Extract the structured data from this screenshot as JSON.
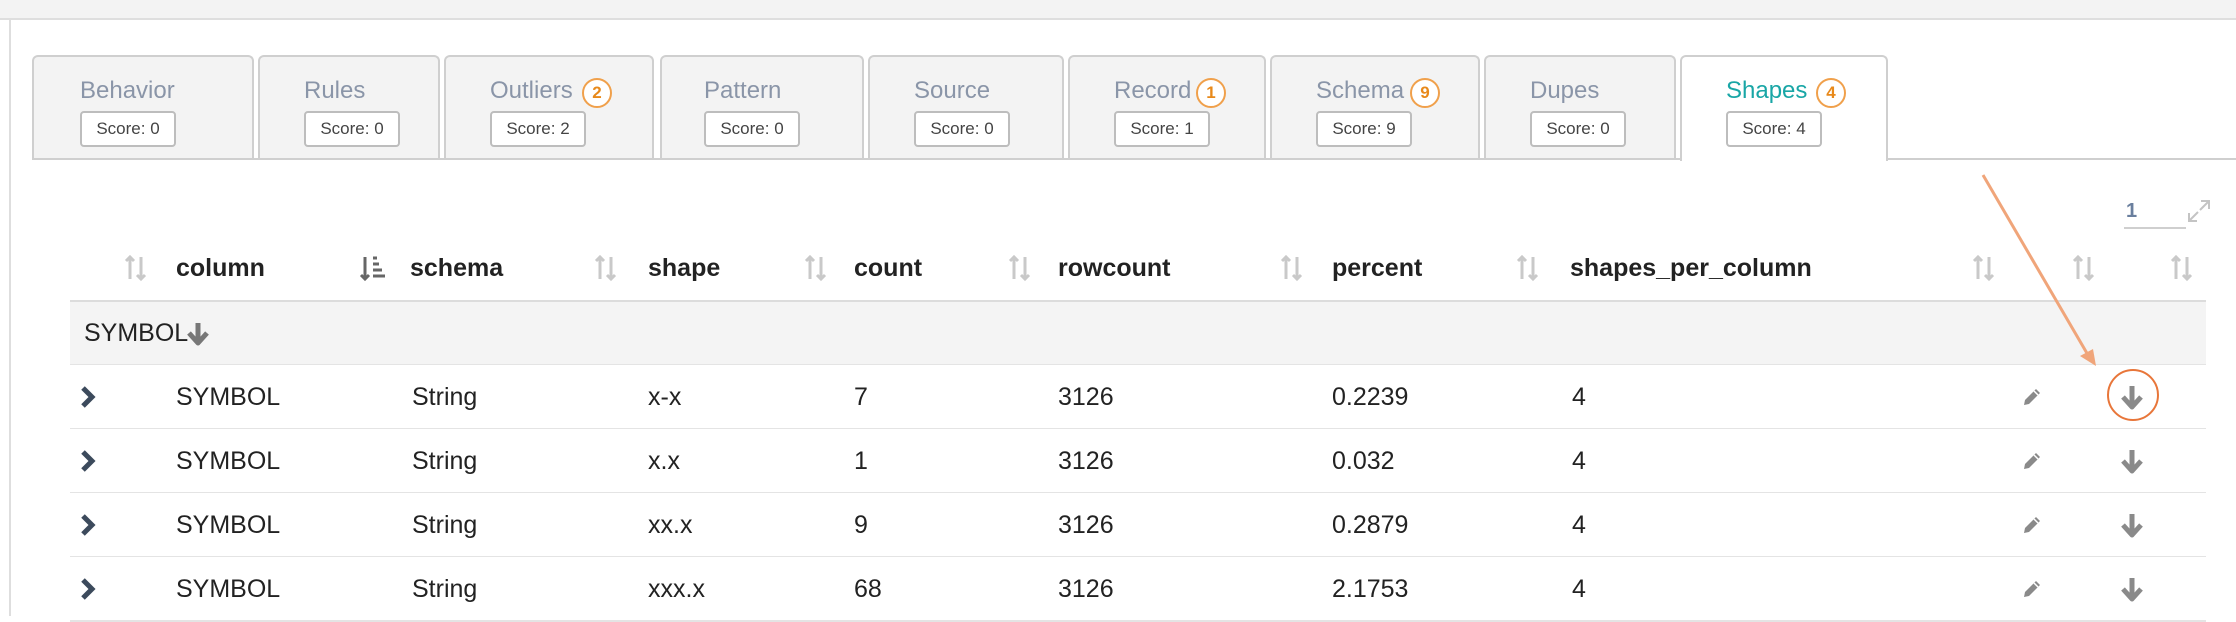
{
  "tabs": [
    {
      "title": "Behavior",
      "badge": null,
      "score": "Score: 0",
      "active": false
    },
    {
      "title": "Rules",
      "badge": null,
      "score": "Score: 0",
      "active": false
    },
    {
      "title": "Outliers",
      "badge": "2",
      "score": "Score: 2",
      "active": false
    },
    {
      "title": "Pattern",
      "badge": null,
      "score": "Score: 0",
      "active": false
    },
    {
      "title": "Source",
      "badge": null,
      "score": "Score: 0",
      "active": false
    },
    {
      "title": "Record",
      "badge": "1",
      "score": "Score: 1",
      "active": false
    },
    {
      "title": "Schema",
      "badge": "9",
      "score": "Score: 9",
      "active": false
    },
    {
      "title": "Dupes",
      "badge": null,
      "score": "Score: 0",
      "active": false
    },
    {
      "title": "Shapes",
      "badge": "4",
      "score": "Score: 4",
      "active": true
    }
  ],
  "pager": {
    "page": "1"
  },
  "table": {
    "headers": [
      "column",
      "schema",
      "shape",
      "count",
      "rowcount",
      "percent",
      "shapes_per_column"
    ],
    "group": {
      "label": "SYMBOL"
    },
    "rows": [
      {
        "column": "SYMBOL",
        "schema": "String",
        "shape": "x-x",
        "count": "7",
        "rowcount": "3126",
        "percent": "0.2239",
        "shapes_per_column": "4"
      },
      {
        "column": "SYMBOL",
        "schema": "String",
        "shape": "x.x",
        "count": "1",
        "rowcount": "3126",
        "percent": "0.032",
        "shapes_per_column": "4"
      },
      {
        "column": "SYMBOL",
        "schema": "String",
        "shape": "xx.x",
        "count": "9",
        "rowcount": "3126",
        "percent": "0.2879",
        "shapes_per_column": "4"
      },
      {
        "column": "SYMBOL",
        "schema": "String",
        "shape": "xxx.x",
        "count": "68",
        "rowcount": "3126",
        "percent": "2.1753",
        "shapes_per_column": "4"
      }
    ]
  },
  "colors": {
    "accent": "#19a6a6",
    "badge": "#e8891a",
    "annotation": "#e8763a",
    "inactive_tab_text": "#8a95a8"
  },
  "icons": {
    "sort": "sort-icon",
    "sorted": "sort-desc-icon",
    "expand_row": "chevron-right-icon",
    "edit": "pencil-icon",
    "download": "arrow-down-icon",
    "fullscreen": "expand-icon"
  }
}
